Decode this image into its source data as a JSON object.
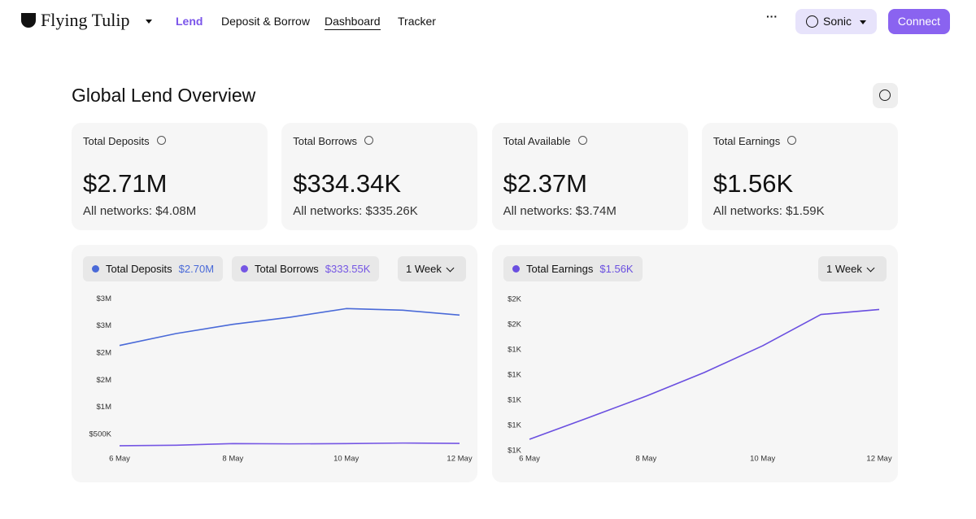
{
  "nav": {
    "logo": "Flying Tulip",
    "links": [
      "Lend",
      "Deposit & Borrow",
      "Dashboard",
      "Tracker"
    ],
    "network": "Sonic",
    "connect": "Connect"
  },
  "title": "Global Lend Overview",
  "cards": [
    {
      "label": "Total Deposits",
      "value": "$2.71M",
      "all_networks": "All networks: $4.08M"
    },
    {
      "label": "Total Borrows",
      "value": "$334.34K",
      "all_networks": "All networks: $335.26K"
    },
    {
      "label": "Total Available",
      "value": "$2.37M",
      "all_networks": "All networks: $3.74M"
    },
    {
      "label": "Total Earnings",
      "value": "$1.56K",
      "all_networks": "All networks: $1.59K"
    }
  ],
  "chart_data": [
    {
      "type": "line",
      "range": "1 Week",
      "categories": [
        "6 May",
        null,
        "8 May",
        null,
        "10 May",
        null,
        "12 May"
      ],
      "series": [
        {
          "name": "Total Deposits",
          "latest": "$2.70M",
          "color": "#4a6ad8",
          "values": [
            2140000,
            2360000,
            2530000,
            2660000,
            2820000,
            2790000,
            2700000
          ]
        },
        {
          "name": "Total Borrows",
          "latest": "$333.55K",
          "color": "#7556e4",
          "values": [
            290000,
            300000,
            330000,
            325000,
            330000,
            340000,
            333550
          ]
        }
      ],
      "ylim": [
        300000,
        3100000
      ],
      "yticks": [
        {
          "value": 500000,
          "label": "$500K"
        },
        {
          "value": 1000000,
          "label": "$1M"
        },
        {
          "value": 1500000,
          "label": "$2M"
        },
        {
          "value": 2000000,
          "label": "$2M"
        },
        {
          "value": 2500000,
          "label": "$3M"
        },
        {
          "value": 3000000,
          "label": "$3M"
        }
      ]
    },
    {
      "type": "line",
      "range": "1 Week",
      "categories": [
        "6 May",
        null,
        "8 May",
        null,
        "10 May",
        null,
        "12 May"
      ],
      "series": [
        {
          "name": "Total Earnings",
          "latest": "$1.56K",
          "color": "#6a4fe0",
          "values": [
            1045,
            1130,
            1216,
            1310,
            1416,
            1540,
            1560
          ]
        }
      ],
      "ylim": [
        1000,
        1620
      ],
      "yticks": [
        {
          "value": 1000,
          "label": "$1K"
        },
        {
          "value": 1100,
          "label": "$1K"
        },
        {
          "value": 1200,
          "label": "$1K"
        },
        {
          "value": 1300,
          "label": "$1K"
        },
        {
          "value": 1400,
          "label": "$1K"
        },
        {
          "value": 1500,
          "label": "$2K"
        },
        {
          "value": 1600,
          "label": "$2K"
        }
      ]
    }
  ]
}
